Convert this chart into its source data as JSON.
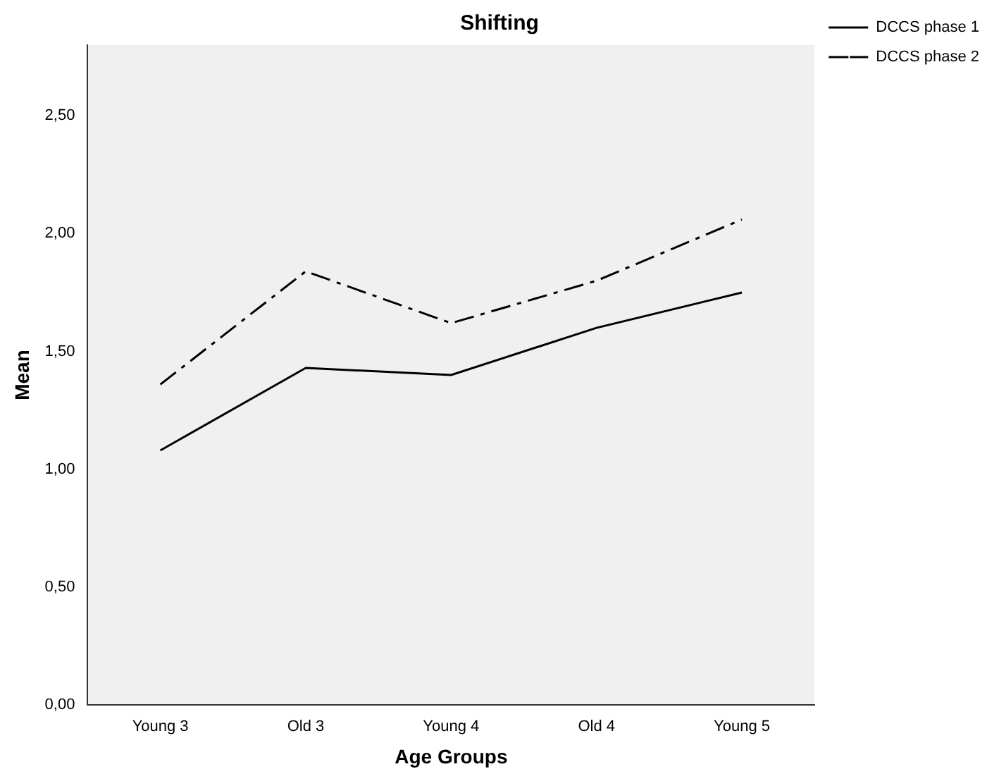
{
  "chart_data": {
    "type": "line",
    "title": "Shifting",
    "xlabel": "Age Groups",
    "ylabel": "Mean",
    "categories": [
      "Young 3",
      "Old 3",
      "Young 4",
      "Old 4",
      "Young 5"
    ],
    "series": [
      {
        "name": "DCCS phase 1",
        "color": "#000000",
        "line_style": "solid",
        "values": [
          1.08,
          1.43,
          1.4,
          1.6,
          1.75
        ]
      },
      {
        "name": "DCCS phase 2",
        "color": "#000000",
        "line_style": "dashed",
        "values": [
          1.36,
          1.84,
          1.62,
          1.8,
          2.06
        ]
      }
    ],
    "ylim": [
      0,
      2.8
    ],
    "yticks": [
      {
        "value": 0,
        "label": "0,00"
      },
      {
        "value": 0.5,
        "label": "0,50"
      },
      {
        "value": 1,
        "label": "1,00"
      },
      {
        "value": 1.5,
        "label": "1,50"
      },
      {
        "value": 2,
        "label": "2,00"
      },
      {
        "value": 2.5,
        "label": "2,50"
      }
    ],
    "grid": false,
    "legend": "top right",
    "marker": "none"
  }
}
